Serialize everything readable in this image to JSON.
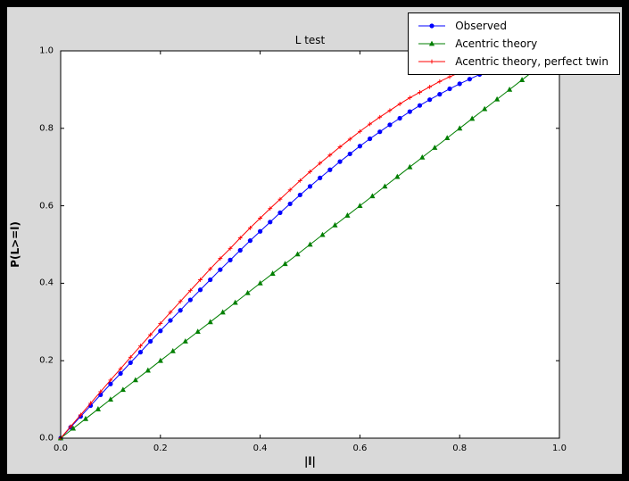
{
  "window": {
    "background_color": "#000000",
    "figure_background_color": "#d9d9d9",
    "plot_background_color": "#ffffff"
  },
  "chart_data": {
    "type": "line",
    "title": "L test",
    "xlabel": "|l|",
    "ylabel": "P(L>=l)",
    "xlim": [
      0.0,
      1.0
    ],
    "ylim": [
      0.0,
      1.0
    ],
    "xticks": [
      0.0,
      0.2,
      0.4,
      0.6,
      0.8,
      1.0
    ],
    "yticks": [
      0.0,
      0.2,
      0.4,
      0.6,
      0.8,
      1.0
    ],
    "grid": false,
    "legend_position": "upper right",
    "series": [
      {
        "name": "Observed",
        "color": "#0000ff",
        "marker": "circle",
        "x": [
          0.0,
          0.02,
          0.04,
          0.06,
          0.08,
          0.1,
          0.12,
          0.14,
          0.16,
          0.18,
          0.2,
          0.22,
          0.24,
          0.26,
          0.28,
          0.3,
          0.32,
          0.34,
          0.36,
          0.38,
          0.4,
          0.42,
          0.44,
          0.46,
          0.48,
          0.5,
          0.52,
          0.54,
          0.56,
          0.58,
          0.6,
          0.62,
          0.64,
          0.66,
          0.68,
          0.7,
          0.72,
          0.74,
          0.76,
          0.78,
          0.8,
          0.82,
          0.84,
          0.86
        ],
        "y": [
          0.0,
          0.028,
          0.056,
          0.084,
          0.112,
          0.14,
          0.167,
          0.195,
          0.222,
          0.25,
          0.277,
          0.304,
          0.33,
          0.357,
          0.383,
          0.409,
          0.435,
          0.46,
          0.485,
          0.51,
          0.534,
          0.558,
          0.582,
          0.605,
          0.628,
          0.65,
          0.672,
          0.693,
          0.714,
          0.734,
          0.754,
          0.773,
          0.791,
          0.809,
          0.826,
          0.843,
          0.859,
          0.874,
          0.888,
          0.902,
          0.915,
          0.927,
          0.939,
          0.95
        ]
      },
      {
        "name": "Acentric theory",
        "color": "#007f00",
        "marker": "triangle_up",
        "x": [
          0.0,
          0.025,
          0.05,
          0.075,
          0.1,
          0.125,
          0.15,
          0.175,
          0.2,
          0.225,
          0.25,
          0.275,
          0.3,
          0.325,
          0.35,
          0.375,
          0.4,
          0.425,
          0.45,
          0.475,
          0.5,
          0.525,
          0.55,
          0.575,
          0.6,
          0.625,
          0.65,
          0.675,
          0.7,
          0.725,
          0.75,
          0.775,
          0.8,
          0.825,
          0.85,
          0.875,
          0.9,
          0.925,
          0.95,
          0.975
        ],
        "y": [
          0.0,
          0.025,
          0.05,
          0.075,
          0.1,
          0.125,
          0.15,
          0.175,
          0.2,
          0.225,
          0.25,
          0.275,
          0.3,
          0.325,
          0.35,
          0.375,
          0.4,
          0.425,
          0.45,
          0.475,
          0.5,
          0.525,
          0.55,
          0.575,
          0.6,
          0.625,
          0.65,
          0.675,
          0.7,
          0.725,
          0.75,
          0.775,
          0.8,
          0.825,
          0.85,
          0.875,
          0.9,
          0.925,
          0.95,
          0.975
        ]
      },
      {
        "name": "Acentric theory, perfect twin",
        "color": "#ff0000",
        "marker": "plus",
        "x": [
          0.0,
          0.02,
          0.04,
          0.06,
          0.08,
          0.1,
          0.12,
          0.14,
          0.16,
          0.18,
          0.2,
          0.22,
          0.24,
          0.26,
          0.28,
          0.3,
          0.32,
          0.34,
          0.36,
          0.38,
          0.4,
          0.42,
          0.44,
          0.46,
          0.48,
          0.5,
          0.52,
          0.54,
          0.56,
          0.58,
          0.6,
          0.62,
          0.64,
          0.66,
          0.68,
          0.7,
          0.72,
          0.74,
          0.76,
          0.78,
          0.8,
          0.82,
          0.84
        ],
        "y": [
          0.0,
          0.03,
          0.06,
          0.09,
          0.12,
          0.15,
          0.179,
          0.209,
          0.238,
          0.267,
          0.296,
          0.325,
          0.353,
          0.381,
          0.409,
          0.437,
          0.464,
          0.49,
          0.517,
          0.543,
          0.568,
          0.593,
          0.617,
          0.641,
          0.665,
          0.688,
          0.71,
          0.731,
          0.752,
          0.772,
          0.792,
          0.811,
          0.829,
          0.846,
          0.863,
          0.879,
          0.893,
          0.907,
          0.921,
          0.933,
          0.944,
          0.954,
          0.964
        ]
      }
    ]
  }
}
